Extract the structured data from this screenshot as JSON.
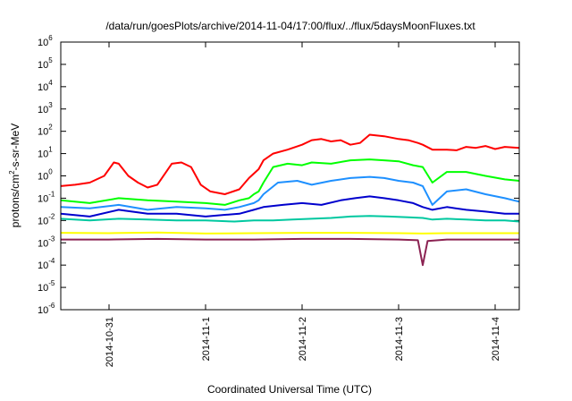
{
  "chart_data": {
    "type": "line",
    "title": "/data/run/goesPlots/archive/2014-11-04/17:00/flux/../flux/5daysMoonFluxes.txt",
    "xlabel": "Coordinated Universal Time (UTC)",
    "ylabel_base": "protons/cm",
    "ylabel_sup": "2",
    "ylabel_rest": "-s-sr-MeV",
    "y_scale": "log",
    "ylim": [
      1e-06,
      1000000
    ],
    "xlim": [
      0,
      4.75
    ],
    "grid": false,
    "legend": "none",
    "x_ticks": [
      {
        "x": 0.5,
        "label": "2014-10-31"
      },
      {
        "x": 1.5,
        "label": "2014-11-1"
      },
      {
        "x": 2.5,
        "label": "2014-11-2"
      },
      {
        "x": 3.5,
        "label": "2014-11-3"
      },
      {
        "x": 4.5,
        "label": "2014-11-4"
      }
    ],
    "y_ticks": [
      {
        "value": 1e-06,
        "base": "10",
        "exp": "-6"
      },
      {
        "value": 1e-05,
        "base": "10",
        "exp": "-5"
      },
      {
        "value": 0.0001,
        "base": "10",
        "exp": "-4"
      },
      {
        "value": 0.001,
        "base": "10",
        "exp": "-3"
      },
      {
        "value": 0.01,
        "base": "10",
        "exp": "-2"
      },
      {
        "value": 0.1,
        "base": "10",
        "exp": "-1"
      },
      {
        "value": 1,
        "base": "10",
        "exp": "0"
      },
      {
        "value": 10,
        "base": "10",
        "exp": "1"
      },
      {
        "value": 100,
        "base": "10",
        "exp": "2"
      },
      {
        "value": 1000,
        "base": "10",
        "exp": "3"
      },
      {
        "value": 10000,
        "base": "10",
        "exp": "4"
      },
      {
        "value": 100000,
        "base": "10",
        "exp": "5"
      },
      {
        "value": 1000000,
        "base": "10",
        "exp": "6"
      }
    ],
    "series": [
      {
        "color": "#ff0000",
        "x": [
          0,
          0.15,
          0.3,
          0.45,
          0.55,
          0.6,
          0.7,
          0.8,
          0.9,
          1.0,
          1.15,
          1.25,
          1.35,
          1.45,
          1.55,
          1.7,
          1.85,
          1.95,
          2.05,
          2.1,
          2.2,
          2.35,
          2.5,
          2.6,
          2.7,
          2.8,
          2.9,
          3.0,
          3.1,
          3.2,
          3.35,
          3.5,
          3.6,
          3.7,
          3.75,
          3.85,
          4.0,
          4.1,
          4.2,
          4.3,
          4.4,
          4.5,
          4.6,
          4.75
        ],
        "y": [
          0.35,
          0.4,
          0.5,
          1.0,
          4.0,
          3.5,
          1.0,
          0.5,
          0.3,
          0.4,
          3.5,
          4.0,
          2.5,
          0.4,
          0.2,
          0.15,
          0.25,
          0.8,
          2.0,
          5.0,
          10,
          15,
          25,
          40,
          45,
          35,
          40,
          25,
          30,
          70,
          60,
          45,
          40,
          30,
          25,
          15,
          15,
          14,
          20,
          18,
          22,
          16,
          20,
          18
        ]
      },
      {
        "color": "#00ff00",
        "x": [
          0,
          0.3,
          0.6,
          0.9,
          1.2,
          1.5,
          1.7,
          1.85,
          1.95,
          2.0,
          2.05,
          2.1,
          2.2,
          2.35,
          2.5,
          2.6,
          2.8,
          3.0,
          3.2,
          3.35,
          3.5,
          3.65,
          3.75,
          3.85,
          4.0,
          4.2,
          4.4,
          4.6,
          4.75
        ],
        "y": [
          0.08,
          0.06,
          0.1,
          0.08,
          0.07,
          0.06,
          0.05,
          0.08,
          0.1,
          0.15,
          0.2,
          0.5,
          2.5,
          3.5,
          3.0,
          4.0,
          3.5,
          5.0,
          5.5,
          5.0,
          4.5,
          3.0,
          2.5,
          0.5,
          1.5,
          1.5,
          1.0,
          0.7,
          0.6
        ]
      },
      {
        "color": "#1e90ff",
        "x": [
          0,
          0.3,
          0.6,
          0.9,
          1.2,
          1.5,
          1.7,
          1.85,
          2.0,
          2.05,
          2.1,
          2.25,
          2.45,
          2.6,
          2.8,
          3.0,
          3.2,
          3.35,
          3.5,
          3.65,
          3.75,
          3.85,
          4.0,
          4.2,
          4.4,
          4.6,
          4.75
        ],
        "y": [
          0.04,
          0.035,
          0.05,
          0.03,
          0.04,
          0.035,
          0.03,
          0.04,
          0.06,
          0.08,
          0.15,
          0.5,
          0.6,
          0.4,
          0.6,
          0.8,
          0.9,
          0.8,
          0.6,
          0.5,
          0.35,
          0.05,
          0.2,
          0.25,
          0.15,
          0.1,
          0.07
        ]
      },
      {
        "color": "#0000cd",
        "x": [
          0,
          0.3,
          0.6,
          0.9,
          1.2,
          1.5,
          1.7,
          1.85,
          2.0,
          2.1,
          2.3,
          2.5,
          2.7,
          2.9,
          3.05,
          3.2,
          3.35,
          3.5,
          3.65,
          3.75,
          3.85,
          4.0,
          4.2,
          4.4,
          4.6,
          4.75
        ],
        "y": [
          0.02,
          0.015,
          0.03,
          0.02,
          0.02,
          0.015,
          0.018,
          0.02,
          0.03,
          0.04,
          0.05,
          0.06,
          0.05,
          0.08,
          0.1,
          0.12,
          0.1,
          0.08,
          0.06,
          0.04,
          0.03,
          0.04,
          0.03,
          0.025,
          0.02,
          0.02
        ]
      },
      {
        "color": "#00c8a0",
        "x": [
          0,
          0.3,
          0.6,
          0.9,
          1.2,
          1.5,
          1.8,
          2.0,
          2.2,
          2.4,
          2.6,
          2.8,
          3.0,
          3.2,
          3.4,
          3.6,
          3.75,
          3.85,
          4.0,
          4.2,
          4.4,
          4.6,
          4.75
        ],
        "y": [
          0.012,
          0.01,
          0.012,
          0.011,
          0.01,
          0.01,
          0.009,
          0.01,
          0.01,
          0.011,
          0.012,
          0.013,
          0.015,
          0.016,
          0.015,
          0.014,
          0.013,
          0.011,
          0.012,
          0.011,
          0.01,
          0.01,
          0.009
        ]
      },
      {
        "color": "#ffff00",
        "x": [
          0,
          0.5,
          1.0,
          1.5,
          2.0,
          2.5,
          3.0,
          3.5,
          3.75,
          4.0,
          4.5,
          4.75
        ],
        "y": [
          0.0028,
          0.0027,
          0.0029,
          0.0026,
          0.0027,
          0.0028,
          0.0028,
          0.0027,
          0.0026,
          0.0027,
          0.0027,
          0.0027
        ]
      },
      {
        "color": "#8b2252",
        "x": [
          0,
          0.5,
          1.0,
          1.5,
          2.0,
          2.5,
          3.0,
          3.5,
          3.7,
          3.75,
          3.8,
          4.0,
          4.5,
          4.75
        ],
        "y": [
          0.0014,
          0.0014,
          0.0015,
          0.0014,
          0.0014,
          0.0015,
          0.0015,
          0.0014,
          0.0013,
          0.0001,
          0.0012,
          0.0014,
          0.0014,
          0.0014
        ]
      }
    ]
  }
}
